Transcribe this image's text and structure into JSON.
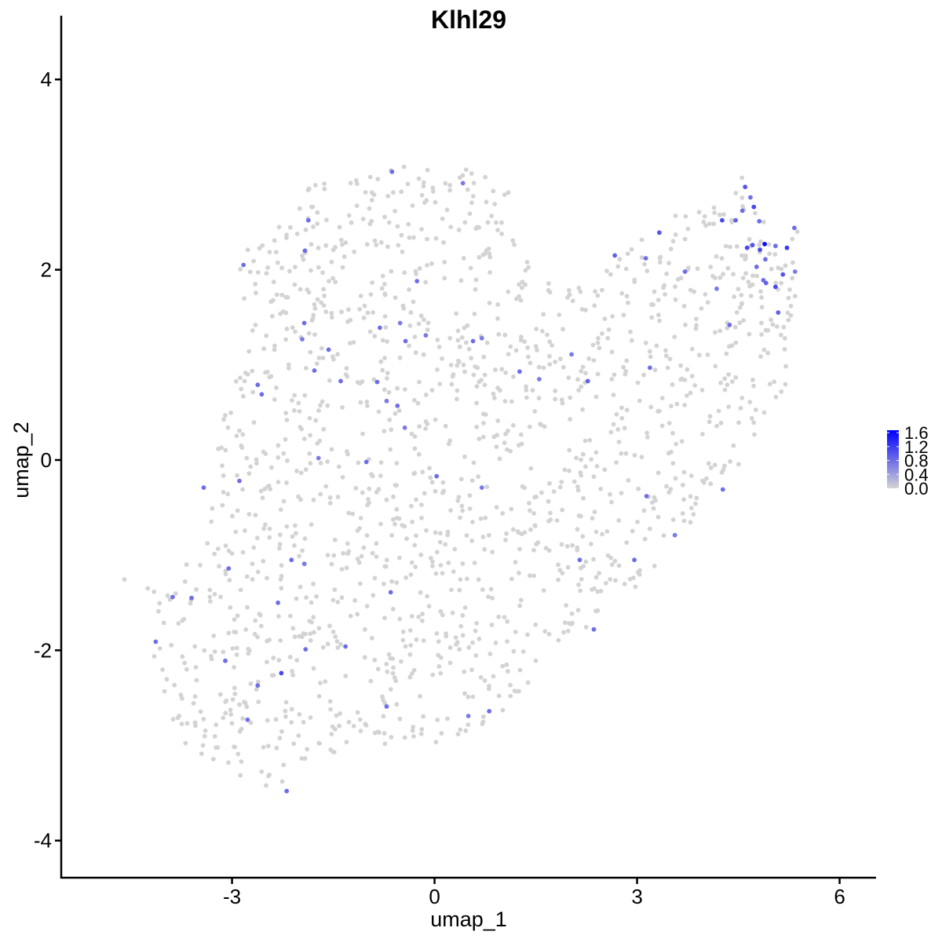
{
  "chart_data": {
    "type": "scatter",
    "title": "Klhl29",
    "xlabel": "umap_1",
    "ylabel": "umap_2",
    "xlim": [
      -5.53,
      6.54
    ],
    "ylim": [
      -4.39,
      4.67
    ],
    "xticks": [
      -3,
      0,
      3,
      6
    ],
    "yticks": [
      -4,
      -2,
      0,
      2,
      4
    ],
    "xtick_labels": [
      "-3",
      "0",
      "3",
      "6"
    ],
    "ytick_labels": [
      "-4",
      "-2",
      "0",
      "2",
      "4"
    ],
    "grid": false,
    "legend_placement": "right",
    "colors": {
      "low": "#D3D3D3",
      "high": "#0000FF"
    },
    "color_scale": {
      "min": 0.0,
      "max": 1.67,
      "tick_values": [
        0.0,
        0.4,
        0.8,
        1.2,
        1.6
      ],
      "tick_labels": [
        "0.0",
        "0.4",
        "0.8",
        "1.2",
        "1.6"
      ]
    },
    "background_points_note_value": 0.0,
    "expressing_points": [
      [
        -0.63,
        3.03,
        0.8
      ],
      [
        0.42,
        2.91,
        0.7
      ],
      [
        -1.87,
        2.52,
        0.8
      ],
      [
        -2.83,
        2.05,
        0.8
      ],
      [
        -1.92,
        2.2,
        0.8
      ],
      [
        -0.26,
        1.88,
        0.8
      ],
      [
        -1.93,
        1.44,
        0.8
      ],
      [
        -1.57,
        1.16,
        0.8
      ],
      [
        -1.78,
        0.94,
        0.8
      ],
      [
        -1.96,
        1.27,
        0.7
      ],
      [
        -0.81,
        1.39,
        0.8
      ],
      [
        -0.51,
        1.44,
        0.7
      ],
      [
        -0.43,
        1.25,
        0.8
      ],
      [
        -0.13,
        1.31,
        0.7
      ],
      [
        0.57,
        1.25,
        0.8
      ],
      [
        0.7,
        1.28,
        0.7
      ],
      [
        -1.39,
        0.83,
        0.8
      ],
      [
        -0.85,
        0.82,
        0.8
      ],
      [
        -0.71,
        0.62,
        0.7
      ],
      [
        -0.55,
        0.57,
        0.8
      ],
      [
        -0.44,
        0.34,
        0.7
      ],
      [
        -2.62,
        0.79,
        0.8
      ],
      [
        -2.56,
        0.69,
        0.8
      ],
      [
        -2.89,
        -0.22,
        0.8
      ],
      [
        -3.42,
        -0.29,
        0.8
      ],
      [
        -1.72,
        0.02,
        0.7
      ],
      [
        -1.01,
        -0.02,
        0.8
      ],
      [
        0.03,
        -0.17,
        0.8
      ],
      [
        0.7,
        -0.29,
        0.7
      ],
      [
        1.26,
        0.93,
        0.8
      ],
      [
        1.55,
        0.85,
        0.7
      ],
      [
        2.27,
        0.83,
        0.9
      ],
      [
        2.03,
        1.11,
        0.7
      ],
      [
        2.67,
        2.15,
        0.9
      ],
      [
        3.13,
        2.12,
        0.8
      ],
      [
        3.33,
        2.39,
        1.0
      ],
      [
        3.71,
        1.98,
        0.8
      ],
      [
        4.18,
        1.8,
        0.7
      ],
      [
        4.37,
        1.42,
        0.8
      ],
      [
        3.19,
        0.97,
        0.8
      ],
      [
        3.14,
        -0.38,
        0.8
      ],
      [
        4.27,
        -0.31,
        0.8
      ],
      [
        3.56,
        -0.79,
        0.7
      ],
      [
        2.96,
        -1.05,
        0.8
      ],
      [
        2.15,
        -1.05,
        0.8
      ],
      [
        2.36,
        -1.78,
        0.8
      ],
      [
        -1.93,
        -1.09,
        0.7
      ],
      [
        -2.12,
        -1.05,
        0.8
      ],
      [
        -3.05,
        -1.14,
        0.8
      ],
      [
        -3.6,
        -1.45,
        0.8
      ],
      [
        -3.88,
        -1.44,
        0.8
      ],
      [
        -4.13,
        -1.91,
        0.8
      ],
      [
        -2.32,
        -1.5,
        0.8
      ],
      [
        -1.91,
        -1.99,
        0.8
      ],
      [
        -1.32,
        -1.96,
        0.8
      ],
      [
        -2.27,
        -2.24,
        1.1
      ],
      [
        -2.62,
        -2.37,
        0.8
      ],
      [
        -2.77,
        -2.73,
        0.8
      ],
      [
        -3.1,
        -2.11,
        0.8
      ],
      [
        -0.71,
        -2.59,
        0.8
      ],
      [
        -0.65,
        -1.39,
        0.8
      ],
      [
        0.5,
        -2.69,
        0.7
      ],
      [
        0.81,
        -2.64,
        0.8
      ],
      [
        -2.19,
        -3.48,
        0.8
      ],
      [
        4.26,
        2.52,
        1.1
      ],
      [
        4.6,
        2.87,
        1.0
      ],
      [
        4.68,
        2.76,
        0.8
      ],
      [
        4.73,
        2.66,
        1.1
      ],
      [
        4.56,
        2.62,
        0.8
      ],
      [
        4.81,
        2.51,
        0.8
      ],
      [
        4.71,
        2.26,
        1.0
      ],
      [
        4.82,
        2.21,
        1.1
      ],
      [
        4.63,
        2.23,
        1.1
      ],
      [
        4.9,
        2.11,
        0.8
      ],
      [
        4.77,
        2.03,
        0.8
      ],
      [
        4.89,
        2.27,
        1.6
      ],
      [
        5.05,
        2.25,
        0.8
      ],
      [
        5.22,
        2.23,
        1.2
      ],
      [
        5.16,
        1.95,
        1.0
      ],
      [
        5.05,
        1.82,
        1.1
      ],
      [
        4.91,
        1.86,
        0.9
      ],
      [
        4.87,
        1.89,
        0.8
      ],
      [
        5.09,
        1.55,
        0.9
      ],
      [
        5.33,
        2.44,
        0.8
      ],
      [
        5.34,
        1.98,
        0.7
      ],
      [
        4.46,
        2.52,
        0.9
      ]
    ]
  }
}
